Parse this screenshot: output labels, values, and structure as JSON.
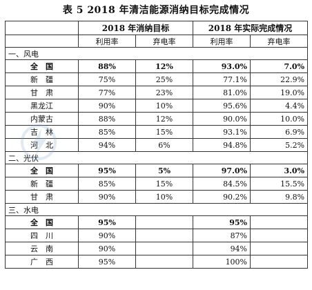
{
  "title": "表 5    2018 年清洁能源消纳目标完成情况",
  "header": {
    "group1": "2018 年消纳目标",
    "group2": "2018 年实际完成情况",
    "col_util": "利用率",
    "col_curt": "弃电率"
  },
  "sections": {
    "wind": {
      "label": "一、风电",
      "rows": [
        {
          "name": "全　国",
          "t_util": "88%",
          "t_curt": "12%",
          "a_util": "93.0%",
          "a_curt": "7.0%",
          "bold": true
        },
        {
          "name": "新　疆",
          "t_util": "75%",
          "t_curt": "25%",
          "a_util": "77.1%",
          "a_curt": "22.9%"
        },
        {
          "name": "甘　肃",
          "t_util": "77%",
          "t_curt": "23%",
          "a_util": "81.0%",
          "a_curt": "19.0%"
        },
        {
          "name": "黑龙江",
          "t_util": "90%",
          "t_curt": "10%",
          "a_util": "95.6%",
          "a_curt": "4.4%"
        },
        {
          "name": "内蒙古",
          "t_util": "88%",
          "t_curt": "12%",
          "a_util": "90.0%",
          "a_curt": "10.0%"
        },
        {
          "name": "吉　林",
          "t_util": "85%",
          "t_curt": "15%",
          "a_util": "93.1%",
          "a_curt": "6.9%"
        },
        {
          "name": "河　北",
          "t_util": "94%",
          "t_curt": "6%",
          "a_util": "94.8%",
          "a_curt": "5.2%"
        }
      ]
    },
    "solar": {
      "label": "二、光伏",
      "rows": [
        {
          "name": "全　国",
          "t_util": "95%",
          "t_curt": "5%",
          "a_util": "97.0%",
          "a_curt": "3.0%",
          "bold": true
        },
        {
          "name": "新　疆",
          "t_util": "85%",
          "t_curt": "15%",
          "a_util": "84.5%",
          "a_curt": "15.5%"
        },
        {
          "name": "甘　肃",
          "t_util": "90%",
          "t_curt": "10%",
          "a_util": "90.2%",
          "a_curt": "9.8%"
        }
      ]
    },
    "hydro": {
      "label": "三、水电",
      "rows": [
        {
          "name": "全　国",
          "t_util": "95%",
          "t_curt": "",
          "a_util": "95%",
          "a_curt": "",
          "bold": true
        },
        {
          "name": "四　川",
          "t_util": "90%",
          "t_curt": "",
          "a_util": "87%",
          "a_curt": ""
        },
        {
          "name": "云　南",
          "t_util": "90%",
          "t_curt": "",
          "a_util": "94%",
          "a_curt": ""
        },
        {
          "name": "广　西",
          "t_util": "95%",
          "t_curt": "",
          "a_util": "100%",
          "a_curt": ""
        }
      ]
    }
  },
  "watermark": {
    "icon": "lightning-logo-icon",
    "color": "#78a0c8"
  }
}
